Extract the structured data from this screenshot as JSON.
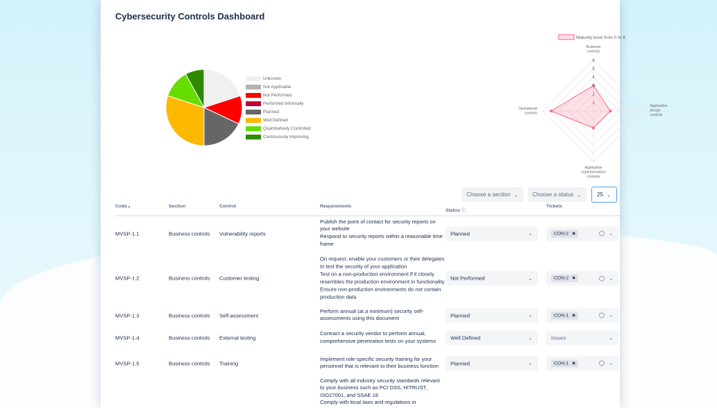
{
  "title": "Cybersecurity Controls Dashboard",
  "pie_legend": [
    {
      "label": "Unknown",
      "color": "#f0f0f0",
      "value": 20
    },
    {
      "label": "Not Applicable",
      "color": "#b3b3b3",
      "value": 0
    },
    {
      "label": "Not Performed",
      "color": "#ff0000",
      "value": 12
    },
    {
      "label": "Performed Informally",
      "color": "#c0003c",
      "value": 0
    },
    {
      "label": "Planned",
      "color": "#666666",
      "value": 18
    },
    {
      "label": "Well Defined",
      "color": "#ffb800",
      "value": 30
    },
    {
      "label": "Quantitatively Controlled",
      "color": "#66dd00",
      "value": 12
    },
    {
      "label": "Continuously Improving",
      "color": "#2e8b00",
      "value": 8
    }
  ],
  "radar": {
    "legend": "Maturity level from 0 to 6",
    "color": "#ff6384",
    "ticks": [
      "1",
      "2",
      "3",
      "4",
      "5",
      "6"
    ],
    "max": 6,
    "axes": [
      {
        "label": [
          "Business",
          "controls"
        ],
        "value": 3
      },
      {
        "label": [
          "Application",
          "design",
          "controls"
        ],
        "value": 2
      },
      {
        "label": [
          "Application",
          "implementation",
          "controls"
        ],
        "value": 2
      },
      {
        "label": [
          "Operational",
          "controls"
        ],
        "value": 5
      }
    ]
  },
  "filters": {
    "section": "Choose a section",
    "status": "Choose a status",
    "page_size": "25"
  },
  "columns": {
    "code": "Code",
    "section": "Section",
    "control": "Control",
    "requirements": "Requirements",
    "status": "Status",
    "tickets": "Tickets"
  },
  "rows": [
    {
      "code": "MVSP-1.1",
      "section": "Business controls",
      "control": "Vulnerability reports",
      "requirements": [
        "Publish the point of contact for security reports on your website",
        "Respond to security reports within a reasonable time frame"
      ],
      "status": "Planned",
      "ticket": "CON-2"
    },
    {
      "code": "MVSP-1.2",
      "section": "Business controls",
      "control": "Customer testing",
      "requirements": [
        "On request, enable your customers or their delegates to test the security of your application",
        "Test on a non-production environment if it closely resembles the production environment in functionality",
        "Ensure non-production environments do not contain production data"
      ],
      "status": "Not Performed",
      "ticket": "CON-2"
    },
    {
      "code": "MVSP-1.3",
      "section": "Business controls",
      "control": "Self-assessment",
      "requirements": [
        "Perform annual (at a minimum) security self-assessments using this document"
      ],
      "status": "Planned",
      "ticket": "CON-1"
    },
    {
      "code": "MVSP-1.4",
      "section": "Business controls",
      "control": "External testing",
      "requirements": [
        "Contract a security vendor to perform annual, comprehensive penetration tests on your systems"
      ],
      "status": "Well Defined",
      "ticket_placeholder": "Issues"
    },
    {
      "code": "MVSP-1.5",
      "section": "Business controls",
      "control": "Training",
      "requirements": [
        "Implement role-specific security training for your personnel that is relevant to their business function"
      ],
      "status": "Planned",
      "ticket": "CON-1"
    },
    {
      "requirements": [
        "Comply with all industry security standards relevant to your business such as PCI DSS, HITRUST, ISO27001, and SSAE 18",
        "Comply with local laws and regulations in"
      ]
    }
  ]
}
